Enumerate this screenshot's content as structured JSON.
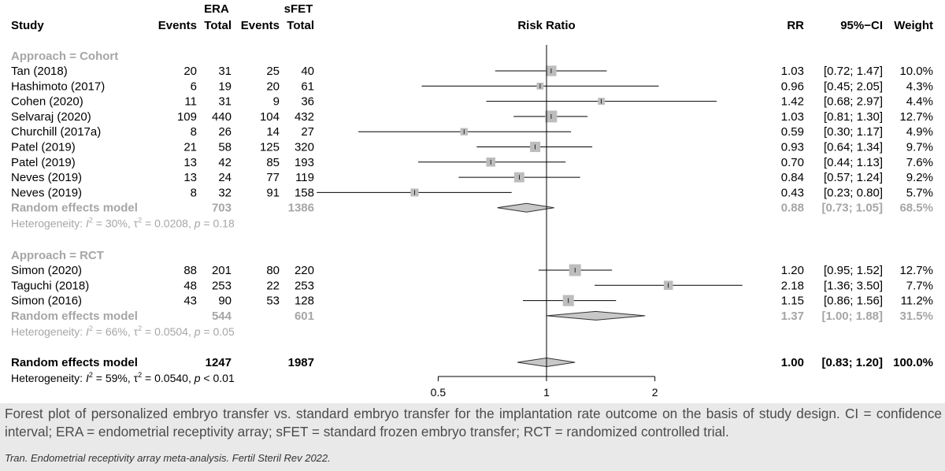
{
  "headers": {
    "study": "Study",
    "era": "ERA",
    "sfet": "sFET",
    "events": "Events",
    "total": "Total",
    "risk_ratio": "Risk Ratio",
    "rr": "RR",
    "ci": "95%−CI",
    "weight": "Weight"
  },
  "colors": {
    "summary_gray": "#a6a6a6",
    "box_gray": "#bdbdbd",
    "diamond_fill": "#c8c8c8",
    "caption_text": "#4b4b4b",
    "footer_bg": "#e9e9ea"
  },
  "chart_data": {
    "type": "forest",
    "x_scale": "log",
    "xlim": [
      0.4,
      3.5
    ],
    "x_ticks": [
      "0.5",
      "1",
      "2"
    ],
    "x_tick_values": [
      0.5,
      1,
      2
    ],
    "null_line": 1,
    "pooled_line": 1.0,
    "groups": [
      {
        "label": "Approach = Cohort",
        "studies": [
          {
            "name": "Tan (2018)",
            "e1": "20",
            "t1": "31",
            "e2": "25",
            "t2": "40",
            "rr": 1.03,
            "lo": 0.72,
            "hi": 1.47,
            "rr_text": "1.03",
            "ci_text": "[0.72; 1.47]",
            "weight": 10.0,
            "weight_text": "10.0%"
          },
          {
            "name": "Hashimoto (2017)",
            "e1": "6",
            "t1": "19",
            "e2": "20",
            "t2": "61",
            "rr": 0.96,
            "lo": 0.45,
            "hi": 2.05,
            "rr_text": "0.96",
            "ci_text": "[0.45; 2.05]",
            "weight": 4.3,
            "weight_text": "4.3%"
          },
          {
            "name": "Cohen (2020)",
            "e1": "11",
            "t1": "31",
            "e2": "9",
            "t2": "36",
            "rr": 1.42,
            "lo": 0.68,
            "hi": 2.97,
            "rr_text": "1.42",
            "ci_text": "[0.68; 2.97]",
            "weight": 4.4,
            "weight_text": "4.4%"
          },
          {
            "name": "Selvaraj (2020)",
            "e1": "109",
            "t1": "440",
            "e2": "104",
            "t2": "432",
            "rr": 1.03,
            "lo": 0.81,
            "hi": 1.3,
            "rr_text": "1.03",
            "ci_text": "[0.81; 1.30]",
            "weight": 12.7,
            "weight_text": "12.7%"
          },
          {
            "name": "Churchill (2017a)",
            "e1": "8",
            "t1": "26",
            "e2": "14",
            "t2": "27",
            "rr": 0.59,
            "lo": 0.3,
            "hi": 1.17,
            "rr_text": "0.59",
            "ci_text": "[0.30; 1.17]",
            "weight": 4.9,
            "weight_text": "4.9%"
          },
          {
            "name": "Patel (2019)",
            "e1": "21",
            "t1": "58",
            "e2": "125",
            "t2": "320",
            "rr": 0.93,
            "lo": 0.64,
            "hi": 1.34,
            "rr_text": "0.93",
            "ci_text": "[0.64; 1.34]",
            "weight": 9.7,
            "weight_text": "9.7%"
          },
          {
            "name": "Patel (2019)",
            "e1": "13",
            "t1": "42",
            "e2": "85",
            "t2": "193",
            "rr": 0.7,
            "lo": 0.44,
            "hi": 1.13,
            "rr_text": "0.70",
            "ci_text": "[0.44; 1.13]",
            "weight": 7.6,
            "weight_text": "7.6%"
          },
          {
            "name": "Neves (2019)",
            "e1": "13",
            "t1": "24",
            "e2": "77",
            "t2": "119",
            "rr": 0.84,
            "lo": 0.57,
            "hi": 1.24,
            "rr_text": "0.84",
            "ci_text": "[0.57; 1.24]",
            "weight": 9.2,
            "weight_text": "9.2%"
          },
          {
            "name": "Neves (2019)",
            "e1": "8",
            "t1": "32",
            "e2": "91",
            "t2": "158",
            "rr": 0.43,
            "lo": 0.23,
            "hi": 0.8,
            "rr_text": "0.43",
            "ci_text": "[0.23; 0.80]",
            "weight": 5.7,
            "weight_text": "5.7%"
          }
        ],
        "summary": {
          "label": "Random effects model",
          "t1": "703",
          "t2": "1386",
          "rr": 0.88,
          "lo": 0.73,
          "hi": 1.05,
          "rr_text": "0.88",
          "ci_text": "[0.73; 1.05]",
          "weight_text": "68.5%"
        },
        "het": {
          "i2": "30%",
          "tau2": "0.0208",
          "p": "= 0.18"
        }
      },
      {
        "label": "Approach = RCT",
        "studies": [
          {
            "name": "Simon (2020)",
            "e1": "88",
            "t1": "201",
            "e2": "80",
            "t2": "220",
            "rr": 1.2,
            "lo": 0.95,
            "hi": 1.52,
            "rr_text": "1.20",
            "ci_text": "[0.95; 1.52]",
            "weight": 12.7,
            "weight_text": "12.7%"
          },
          {
            "name": "Taguchi (2018)",
            "e1": "48",
            "t1": "253",
            "e2": "22",
            "t2": "253",
            "rr": 2.18,
            "lo": 1.36,
            "hi": 3.5,
            "rr_text": "2.18",
            "ci_text": "[1.36; 3.50]",
            "weight": 7.7,
            "weight_text": "7.7%"
          },
          {
            "name": "Simon (2016)",
            "e1": "43",
            "t1": "90",
            "e2": "53",
            "t2": "128",
            "rr": 1.15,
            "lo": 0.86,
            "hi": 1.56,
            "rr_text": "1.15",
            "ci_text": "[0.86; 1.56]",
            "weight": 11.2,
            "weight_text": "11.2%"
          }
        ],
        "summary": {
          "label": "Random effects model",
          "t1": "544",
          "t2": "601",
          "rr": 1.37,
          "lo": 1.0,
          "hi": 1.88,
          "rr_text": "1.37",
          "ci_text": "[1.00; 1.88]",
          "weight_text": "31.5%"
        },
        "het": {
          "i2": "66%",
          "tau2": "0.0504",
          "p": "= 0.05"
        }
      }
    ],
    "overall": {
      "label": "Random effects model",
      "t1": "1247",
      "t2": "1987",
      "rr": 1.0,
      "lo": 0.83,
      "hi": 1.2,
      "rr_text": "1.00",
      "ci_text": "[0.83; 1.20]",
      "weight_text": "100.0%"
    },
    "overall_het": {
      "i2": "59%",
      "tau2": "0.0540",
      "p": "< 0.01"
    }
  },
  "caption": "Forest plot of personalized embryo transfer vs. standard embryo transfer for the implantation rate outcome on the basis of study design. CI = confidence interval; ERA = endometrial receptivity array; sFET = standard frozen embryo transfer; RCT = randomized controlled trial.",
  "source": "Tran. Endometrial receptivity array meta-analysis. Fertil Steril Rev 2022."
}
